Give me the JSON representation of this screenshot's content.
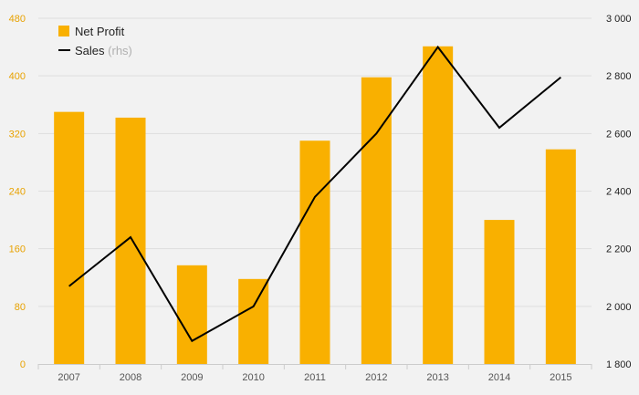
{
  "chart_data": {
    "type": "bar",
    "categories": [
      "2007",
      "2008",
      "2009",
      "2010",
      "2011",
      "2012",
      "2013",
      "2014",
      "2015"
    ],
    "series": [
      {
        "name": "Net Profit",
        "type": "bar",
        "axis": "left",
        "color": "#f9b000",
        "values": [
          350,
          342,
          137,
          118,
          310,
          398,
          441,
          200,
          298
        ]
      },
      {
        "name": "Sales",
        "name_note": "(rhs)",
        "type": "line",
        "axis": "right",
        "color": "#000000",
        "values": [
          2070,
          2240,
          1880,
          2000,
          2380,
          2600,
          2900,
          2620,
          2795
        ]
      }
    ],
    "y_left": {
      "min": 0,
      "max": 480,
      "ticks": [
        "0",
        "80",
        "160",
        "240",
        "320",
        "400",
        "480"
      ],
      "color": "#e8a200"
    },
    "y_right": {
      "min": 1800,
      "max": 3000,
      "ticks": [
        "1 800",
        "2 000",
        "2 200",
        "2 400",
        "2 600",
        "2 800",
        "3 000"
      ]
    },
    "grid": true,
    "legend_position": "top-left"
  }
}
